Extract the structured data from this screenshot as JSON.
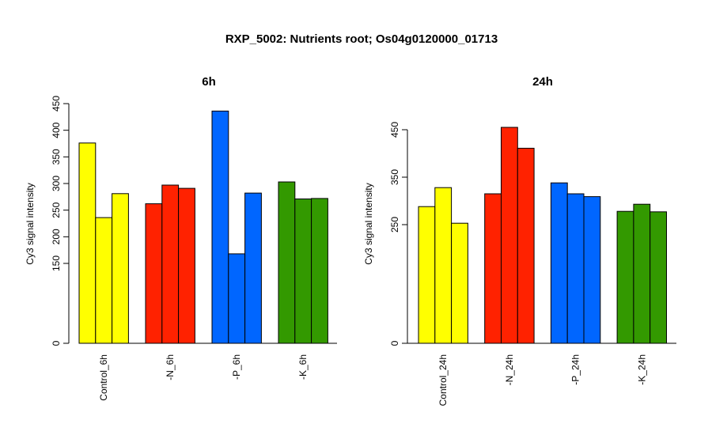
{
  "figure_title": "RXP_5002: Nutrients root; Os04g0120000_01713",
  "colors": {
    "control": "#FFFF00",
    "N": "#FF2200",
    "P": "#0066FF",
    "K": "#339900",
    "outline": "#000000"
  },
  "chart_data": [
    {
      "type": "bar",
      "title": "6h",
      "ylabel": "Cy3 signal intensity",
      "ylim": [
        0,
        450
      ],
      "yticks": [
        0,
        150,
        200,
        250,
        300,
        350,
        400,
        450
      ],
      "groups": [
        {
          "label": "Control_6h",
          "color_key": "control",
          "values": [
            376,
            236,
            281
          ]
        },
        {
          "label": "-N_6h",
          "color_key": "N",
          "values": [
            262,
            297,
            291
          ]
        },
        {
          "label": "-P_6h",
          "color_key": "P",
          "values": [
            436,
            168,
            282
          ]
        },
        {
          "label": "-K_6h",
          "color_key": "K",
          "values": [
            303,
            271,
            272
          ]
        }
      ]
    },
    {
      "type": "bar",
      "title": "24h",
      "ylabel": "Cy3 signal intensity",
      "ylim": [
        0,
        505
      ],
      "yticks": [
        0,
        250,
        350,
        450
      ],
      "groups": [
        {
          "label": "Control_24h",
          "color_key": "control",
          "values": [
            288,
            328,
            253
          ]
        },
        {
          "label": "-N_24h",
          "color_key": "N",
          "values": [
            315,
            455,
            411
          ]
        },
        {
          "label": "-P_24h",
          "color_key": "P",
          "values": [
            338,
            315,
            309
          ]
        },
        {
          "label": "-K_24h",
          "color_key": "K",
          "values": [
            278,
            293,
            277
          ]
        }
      ]
    }
  ]
}
